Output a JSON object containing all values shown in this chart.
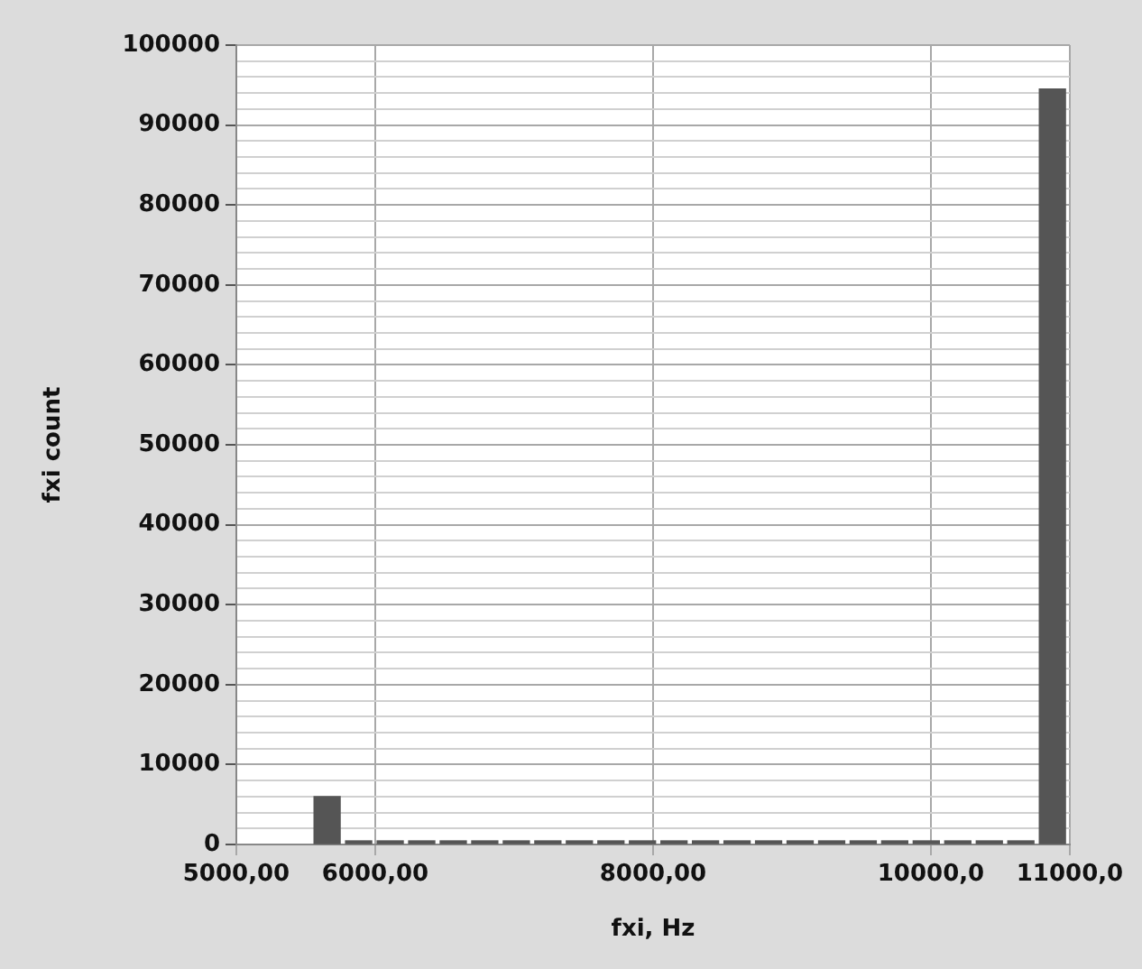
{
  "chart_data": {
    "type": "histogram",
    "xlabel": "fxi, Hz",
    "ylabel": "fxi count",
    "bins": [
      5540,
      5767,
      5994,
      6221,
      6448,
      6675,
      6902,
      7129,
      7356,
      7583,
      7810,
      8037,
      8264,
      8491,
      8718,
      8945,
      9172,
      9399,
      9626,
      9853,
      10080,
      10307,
      10534,
      10761,
      10988
    ],
    "values": [
      6000,
      0,
      0,
      0,
      0,
      0,
      0,
      0,
      0,
      0,
      0,
      0,
      0,
      0,
      0,
      0,
      0,
      0,
      0,
      0,
      0,
      0,
      0,
      94500
    ],
    "color": "#555555",
    "xlim": [
      5000,
      11000
    ],
    "xticks": [
      {
        "value": 5000,
        "label": "5000,00"
      },
      {
        "value": 6000,
        "label": "6000,00"
      },
      {
        "value": 8000,
        "label": "8000,00"
      },
      {
        "value": 10000,
        "label": "10000,0"
      },
      {
        "value": 11000,
        "label": "11000,0"
      }
    ],
    "ylim": [
      0,
      100000
    ],
    "yticks": [
      0,
      {
        "value": 2000,
        "label": null
      },
      {
        "value": 4000,
        "label": null
      },
      {
        "value": 6000,
        "label": null
      },
      {
        "value": 8000,
        "label": null
      },
      10000,
      {
        "value": 12000,
        "label": null
      },
      {
        "value": 14000,
        "label": null
      },
      {
        "value": 16000,
        "label": null
      },
      {
        "value": 18000,
        "label": null
      },
      20000,
      {
        "value": 22000,
        "label": null
      },
      {
        "value": 24000,
        "label": null
      },
      {
        "value": 26000,
        "label": null
      },
      {
        "value": 28000,
        "label": null
      },
      30000,
      {
        "value": 32000,
        "label": null
      },
      {
        "value": 34000,
        "label": null
      },
      {
        "value": 36000,
        "label": null
      },
      {
        "value": 38000,
        "label": null
      },
      40000,
      {
        "value": 42000,
        "label": null
      },
      {
        "value": 44000,
        "label": null
      },
      {
        "value": 46000,
        "label": null
      },
      {
        "value": 48000,
        "label": null
      },
      50000,
      {
        "value": 52000,
        "label": null
      },
      {
        "value": 54000,
        "label": null
      },
      {
        "value": 56000,
        "label": null
      },
      {
        "value": 58000,
        "label": null
      },
      60000,
      {
        "value": 62000,
        "label": null
      },
      {
        "value": 64000,
        "label": null
      },
      {
        "value": 66000,
        "label": null
      },
      {
        "value": 68000,
        "label": null
      },
      70000,
      {
        "value": 72000,
        "label": null
      },
      {
        "value": 74000,
        "label": null
      },
      {
        "value": 76000,
        "label": null
      },
      {
        "value": 78000,
        "label": null
      },
      80000,
      {
        "value": 82000,
        "label": null
      },
      {
        "value": 84000,
        "label": null
      },
      {
        "value": 86000,
        "label": null
      },
      {
        "value": 88000,
        "label": null
      },
      90000,
      {
        "value": 92000,
        "label": null
      },
      {
        "value": 94000,
        "label": null
      },
      {
        "value": 96000,
        "label": null
      },
      {
        "value": 98000,
        "label": null
      },
      100000
    ],
    "grid": true,
    "legend": false
  }
}
